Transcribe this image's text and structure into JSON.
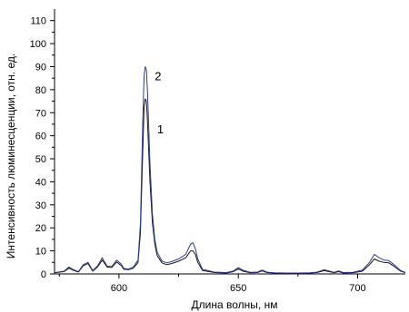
{
  "chart_data": {
    "type": "line",
    "xlabel": "Длина волны, нм",
    "ylabel": "Интенсивность люминесценции, отн. ед.",
    "xlim": [
      573,
      720
    ],
    "ylim": [
      0,
      115
    ],
    "x_ticks": [
      600,
      650,
      700
    ],
    "y_ticks": [
      0,
      10,
      20,
      30,
      40,
      50,
      60,
      70,
      80,
      90,
      100,
      110
    ],
    "x_tick_labels": [
      "600",
      "650",
      "700"
    ],
    "y_tick_labels": [
      "0",
      "10",
      "20",
      "30",
      "40",
      "50",
      "60",
      "70",
      "80",
      "90",
      "100",
      "110"
    ],
    "grid": false,
    "series": [
      {
        "name": "1",
        "color": "#1a1a1a",
        "label_at": [
          616,
          63
        ],
        "points": [
          [
            573,
            0.5
          ],
          [
            577,
            1.0
          ],
          [
            579,
            2.5
          ],
          [
            581,
            1.5
          ],
          [
            583,
            0.8
          ],
          [
            585,
            3.5
          ],
          [
            587,
            4.5
          ],
          [
            589,
            1.2
          ],
          [
            591,
            3.0
          ],
          [
            593,
            6.0
          ],
          [
            595,
            3.0
          ],
          [
            597,
            2.8
          ],
          [
            599,
            5.2
          ],
          [
            601,
            3.6
          ],
          [
            602,
            2.0
          ],
          [
            604,
            1.8
          ],
          [
            606,
            2.5
          ],
          [
            608,
            5.0
          ],
          [
            609,
            18.0
          ],
          [
            610,
            55.0
          ],
          [
            610.5,
            72.0
          ],
          [
            611,
            76.0
          ],
          [
            611.5,
            75.0
          ],
          [
            612,
            65.0
          ],
          [
            613,
            40.0
          ],
          [
            614,
            22.0
          ],
          [
            615,
            13.0
          ],
          [
            616,
            8.0
          ],
          [
            618,
            4.8
          ],
          [
            620,
            4.0
          ],
          [
            622,
            4.5
          ],
          [
            625,
            5.5
          ],
          [
            628,
            7.0
          ],
          [
            630,
            10.0
          ],
          [
            631,
            10.0
          ],
          [
            632,
            8.5
          ],
          [
            633,
            5.0
          ],
          [
            635,
            1.5
          ],
          [
            640,
            0.6
          ],
          [
            645,
            0.4
          ],
          [
            648,
            1.0
          ],
          [
            650,
            2.2
          ],
          [
            652,
            1.2
          ],
          [
            655,
            0.5
          ],
          [
            658,
            0.6
          ],
          [
            660,
            1.3
          ],
          [
            662,
            0.6
          ],
          [
            665,
            0.4
          ],
          [
            670,
            0.3
          ],
          [
            675,
            0.3
          ],
          [
            680,
            0.4
          ],
          [
            683,
            0.6
          ],
          [
            686,
            1.4
          ],
          [
            688,
            1.0
          ],
          [
            690,
            0.5
          ],
          [
            692,
            1.0
          ],
          [
            694,
            0.4
          ],
          [
            698,
            0.5
          ],
          [
            702,
            1.2
          ],
          [
            705,
            4.0
          ],
          [
            707,
            6.5
          ],
          [
            709,
            5.5
          ],
          [
            711,
            5.0
          ],
          [
            713,
            4.8
          ],
          [
            715,
            3.5
          ],
          [
            718,
            1.2
          ],
          [
            720,
            0.5
          ]
        ]
      },
      {
        "name": "2",
        "color": "#2a3f9a",
        "label_at": [
          615,
          86
        ],
        "points": [
          [
            573,
            0.6
          ],
          [
            577,
            1.2
          ],
          [
            579,
            3.0
          ],
          [
            581,
            1.8
          ],
          [
            583,
            1.0
          ],
          [
            585,
            4.0
          ],
          [
            587,
            5.0
          ],
          [
            589,
            1.5
          ],
          [
            591,
            3.5
          ],
          [
            593,
            7.0
          ],
          [
            595,
            3.4
          ],
          [
            597,
            3.2
          ],
          [
            599,
            6.0
          ],
          [
            601,
            4.2
          ],
          [
            602,
            2.4
          ],
          [
            604,
            2.1
          ],
          [
            606,
            3.0
          ],
          [
            608,
            6.0
          ],
          [
            609,
            22.0
          ],
          [
            610,
            68.0
          ],
          [
            610.5,
            86.0
          ],
          [
            611,
            90.0
          ],
          [
            611.5,
            88.5
          ],
          [
            612,
            78.0
          ],
          [
            613,
            48.0
          ],
          [
            614,
            26.0
          ],
          [
            615,
            15.0
          ],
          [
            616,
            9.5
          ],
          [
            618,
            5.6
          ],
          [
            620,
            4.8
          ],
          [
            622,
            5.3
          ],
          [
            625,
            6.5
          ],
          [
            628,
            8.5
          ],
          [
            630,
            13.0
          ],
          [
            631,
            13.5
          ],
          [
            632,
            11.0
          ],
          [
            633,
            6.5
          ],
          [
            635,
            2.0
          ],
          [
            640,
            0.8
          ],
          [
            645,
            0.6
          ],
          [
            648,
            1.3
          ],
          [
            650,
            2.8
          ],
          [
            652,
            1.6
          ],
          [
            655,
            0.7
          ],
          [
            658,
            0.8
          ],
          [
            660,
            1.7
          ],
          [
            662,
            0.8
          ],
          [
            665,
            0.5
          ],
          [
            670,
            0.4
          ],
          [
            675,
            0.4
          ],
          [
            680,
            0.5
          ],
          [
            683,
            0.8
          ],
          [
            686,
            1.8
          ],
          [
            688,
            1.3
          ],
          [
            690,
            0.7
          ],
          [
            692,
            1.3
          ],
          [
            694,
            0.6
          ],
          [
            698,
            0.7
          ],
          [
            702,
            1.6
          ],
          [
            705,
            5.0
          ],
          [
            707,
            8.5
          ],
          [
            709,
            7.0
          ],
          [
            711,
            6.0
          ],
          [
            713,
            5.8
          ],
          [
            715,
            4.2
          ],
          [
            718,
            1.5
          ],
          [
            720,
            0.6
          ]
        ]
      }
    ]
  }
}
